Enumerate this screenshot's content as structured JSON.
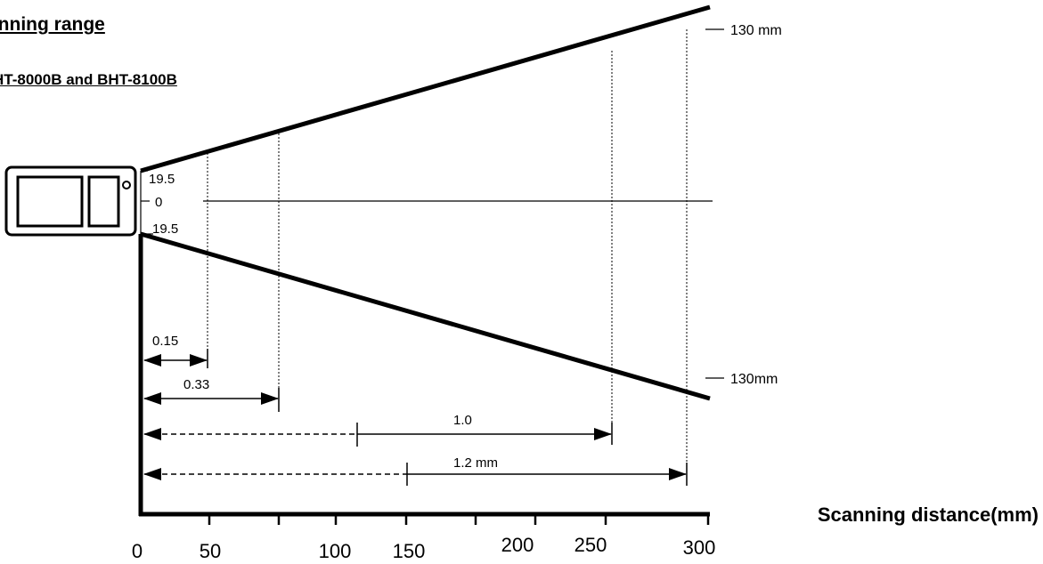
{
  "header": {
    "title": "anning range",
    "subtitle": "HT-8000B and BHT-8100B"
  },
  "diagram": {
    "x_axis_label": "Scanning distance(mm)",
    "x_ticks": [
      "0",
      "50",
      "100",
      "150",
      "200",
      "250",
      "300"
    ],
    "origin_labels": {
      "upper": "19.5",
      "center": "0",
      "lower": "19.5"
    },
    "width_labels": {
      "top": "130 mm",
      "bottom": "130mm"
    },
    "resolutions": [
      {
        "label": "0.15"
      },
      {
        "label": "0.33"
      },
      {
        "label": "1.0"
      },
      {
        "label": "1.2 mm"
      }
    ]
  }
}
